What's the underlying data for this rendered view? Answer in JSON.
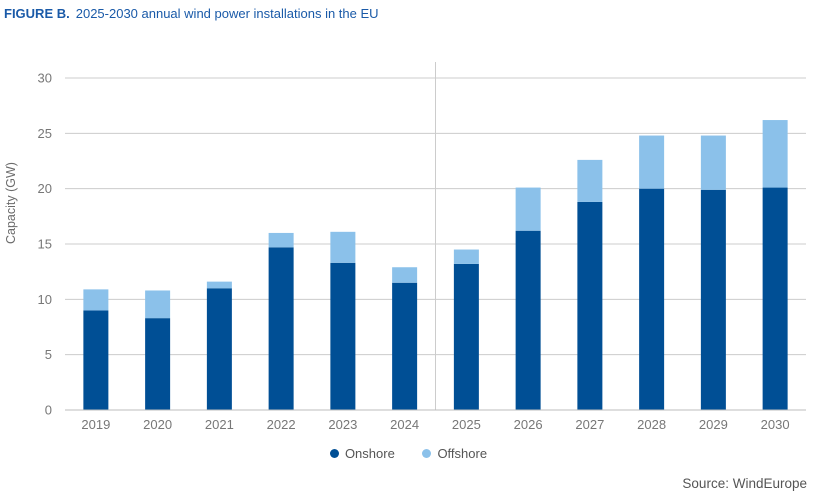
{
  "figure": {
    "label": "FIGURE B.",
    "title": "2025-2030 annual wind power installations in the EU",
    "source": "Source: WindEurope"
  },
  "colors": {
    "onshore": "#004f95",
    "offshore": "#8bc1ea",
    "axis": "#cccccc",
    "tick_text": "#777777",
    "title": "#1a5aa8"
  },
  "chart_data": {
    "type": "bar",
    "stacked": true,
    "title": "2025-2030 annual wind power installations in the EU",
    "xlabel": "",
    "ylabel": "Capacity (GW)",
    "ylim": [
      0,
      30
    ],
    "yticks": [
      0,
      5,
      10,
      15,
      20,
      25,
      30
    ],
    "categories": [
      "2019",
      "2020",
      "2021",
      "2022",
      "2023",
      "2024",
      "2025",
      "2026",
      "2027",
      "2028",
      "2029",
      "2030"
    ],
    "series": [
      {
        "name": "Onshore",
        "values": [
          9.0,
          8.3,
          11.0,
          14.7,
          13.3,
          11.5,
          13.2,
          16.2,
          18.8,
          20.0,
          19.9,
          20.1
        ]
      },
      {
        "name": "Offshore",
        "values": [
          1.9,
          2.5,
          0.6,
          1.3,
          2.8,
          1.4,
          1.3,
          3.9,
          3.8,
          4.8,
          4.9,
          6.1
        ]
      }
    ],
    "divider_between": [
      "2024",
      "2025"
    ],
    "grid": true,
    "legend_position": "bottom-center"
  }
}
